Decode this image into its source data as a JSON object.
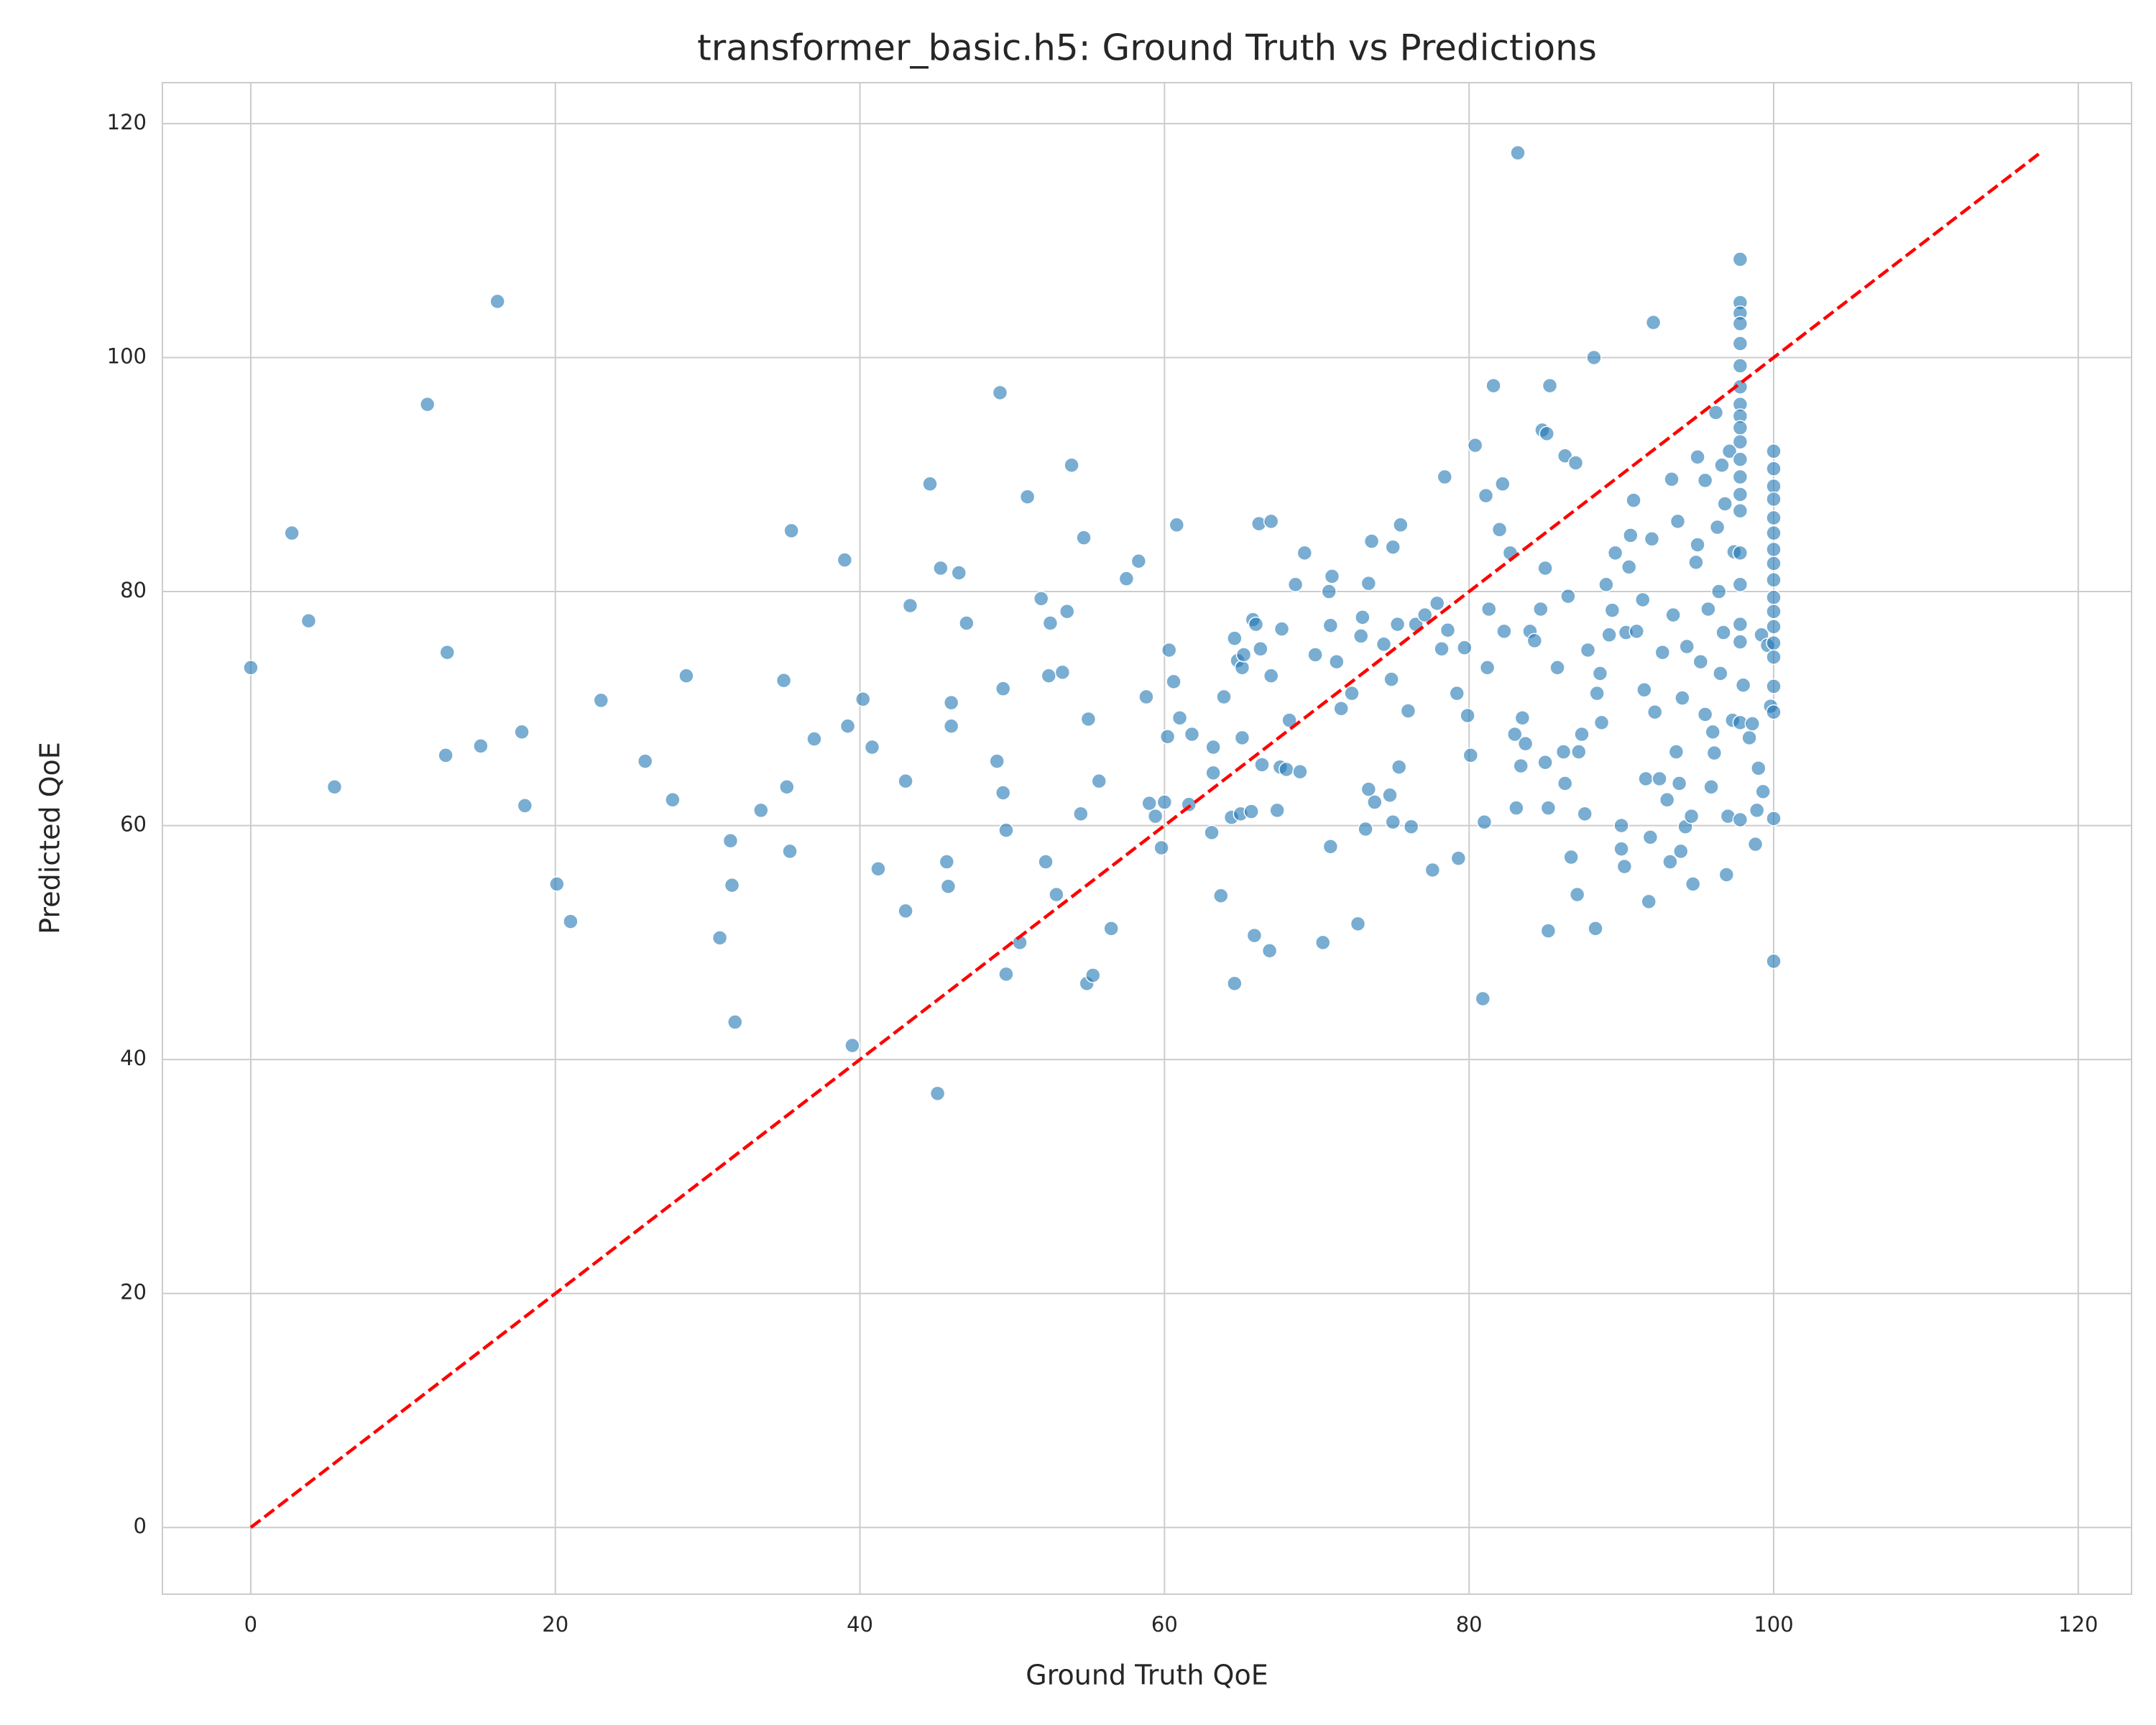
{
  "chart_data": {
    "type": "scatter",
    "title": "transformer_basic.h5: Ground Truth vs Predictions",
    "x_label": "Ground Truth QoE",
    "y_label": "Predicted QoE",
    "xlim": [
      -5.8,
      123.5
    ],
    "ylim": [
      -5.7,
      123.5
    ],
    "xticks": [
      0,
      20,
      40,
      60,
      80,
      100,
      120
    ],
    "yticks": [
      0,
      20,
      40,
      60,
      80,
      100,
      120
    ],
    "grid": true,
    "color": "#1f77b4",
    "reference_line": {
      "x": [
        0,
        117.5
      ],
      "y": [
        0,
        117.5
      ],
      "color": "#ff0000"
    },
    "x": [
      0,
      2.7,
      3.8,
      5.5,
      11.6,
      12.8,
      12.9,
      15.1,
      16.2,
      17.8,
      18,
      20.1,
      21,
      23,
      25.9,
      27.7,
      28.6,
      30.8,
      31.5,
      31.6,
      31.8,
      33.5,
      35,
      35.2,
      35.4,
      35.5,
      37,
      39,
      39.2,
      39.5,
      40.2,
      40.8,
      41.2,
      43,
      43,
      43.3,
      44.6,
      45.1,
      45.3,
      45.7,
      45.8,
      46,
      46,
      46.5,
      47,
      49,
      49.2,
      49.4,
      49.4,
      49.6,
      49.6,
      50.5,
      51,
      51.9,
      52.2,
      52.4,
      52.5,
      52.9,
      53.3,
      53.6,
      53.9,
      54.5,
      54.7,
      54.9,
      55,
      55.3,
      55.7,
      56.5,
      57.5,
      58.3,
      58.8,
      59,
      59.4,
      59.8,
      60,
      60.2,
      60.3,
      60.6,
      60.8,
      61,
      61.6,
      61.8,
      63.2,
      63.2,
      63.1,
      63.7,
      63.9,
      64.4,
      64.6,
      64.6,
      64.8,
      65,
      65.1,
      65.1,
      65.2,
      65.7,
      65.8,
      65.9,
      66,
      66.2,
      66.3,
      66.4,
      66.9,
      67,
      67,
      67.4,
      67.6,
      67.7,
      68,
      68.2,
      68.6,
      68.9,
      69.2,
      69.9,
      70.4,
      70.8,
      70.9,
      70.9,
      71,
      71.3,
      71.6,
      72.3,
      72.7,
      72.9,
      73,
      73.2,
      73.4,
      73.4,
      73.6,
      73.8,
      74.4,
      74.8,
      74.9,
      75,
      75,
      75.3,
      75.4,
      75.5,
      76,
      76.2,
      76.5,
      77.1,
      77.6,
      77.9,
      78.2,
      78.4,
      78.6,
      79.2,
      79.3,
      79.7,
      79.9,
      80.1,
      80.4,
      80.9,
      81,
      81.1,
      81.2,
      81.3,
      81.6,
      82,
      82.2,
      82.3,
      82.7,
      83,
      83.1,
      83.2,
      83.4,
      83.5,
      83.7,
      84,
      84.3,
      84.7,
      84.8,
      85,
      85,
      85.1,
      85.2,
      85.2,
      85.3,
      85.8,
      86.2,
      86.3,
      86.3,
      86.5,
      86.7,
      87,
      87.1,
      87.2,
      87.4,
      87.6,
      87.8,
      88.2,
      88.3,
      88.4,
      88.6,
      88.7,
      89,
      89.2,
      89.4,
      89.6,
      90,
      90,
      90.2,
      90.3,
      90.5,
      90.6,
      90.8,
      91,
      91.4,
      91.5,
      91.6,
      91.8,
      91.9,
      92,
      92.1,
      92.2,
      92.5,
      92.7,
      93,
      93.2,
      93.3,
      93.4,
      93.6,
      93.7,
      93.8,
      93.9,
      94,
      94.2,
      94.3,
      94.6,
      94.7,
      94.9,
      95,
      95,
      95.2,
      95.5,
      95.5,
      95.7,
      95.9,
      96,
      96.1,
      96.2,
      96.3,
      96.4,
      96.5,
      96.6,
      96.7,
      96.8,
      96.9,
      97,
      97.1,
      97.3,
      97.4,
      97.8,
      97.8,
      97.8,
      97.8,
      97.8,
      97.8,
      97.8,
      97.8,
      97.8,
      97.8,
      97.8,
      97.8,
      97.8,
      97.8,
      97.8,
      97.8,
      97.8,
      97.8,
      97.8,
      97.8,
      97.8,
      98,
      98.4,
      98.6,
      98.8,
      98.9,
      99,
      99.2,
      99.3,
      99.6,
      99.8,
      100,
      100,
      100,
      100,
      100,
      100,
      100,
      100,
      100,
      100,
      100,
      100,
      100,
      100,
      100,
      100,
      100,
      100
    ],
    "values": [
      73.5,
      85,
      77.5,
      63.3,
      96,
      66,
      74.8,
      66.8,
      104.8,
      68,
      61.7,
      55,
      51.8,
      70.7,
      65.5,
      62.2,
      72.8,
      50.4,
      58.7,
      54.9,
      43.2,
      61.3,
      72.4,
      63.3,
      57.8,
      85.2,
      67.4,
      82.7,
      68.5,
      41.2,
      70.8,
      66.7,
      56.3,
      63.8,
      52.7,
      78.8,
      89.2,
      37.1,
      82,
      56.9,
      54.8,
      70.5,
      68.5,
      81.6,
      77.3,
      65.5,
      97,
      62.8,
      71.7,
      59.6,
      47.3,
      50,
      88.1,
      79.4,
      56.9,
      72.8,
      77.3,
      54.1,
      73.1,
      78.3,
      90.8,
      61,
      84.6,
      46.5,
      69.1,
      47.2,
      63.8,
      51.2,
      81.1,
      82.6,
      71,
      61.9,
      60.8,
      58.1,
      62,
      67.6,
      75,
      72.3,
      85.7,
      69.2,
      61.8,
      67.8,
      66.7,
      64.5,
      59.4,
      54,
      71,
      60.7,
      76,
      46.5,
      74.1,
      61,
      67.5,
      73.5,
      74.6,
      61.2,
      77.6,
      50.6,
      77.2,
      85.8,
      75.1,
      65.2,
      49.3,
      86,
      72.8,
      61.3,
      65,
      76.8,
      64.8,
      69,
      80.6,
      64.6,
      83.3,
      74.6,
      50,
      80,
      77.1,
      58.2,
      81.3,
      74,
      70,
      71.3,
      51.6,
      76.2,
      77.8,
      59.7,
      63.1,
      80.7,
      84.3,
      62,
      75.5,
      62.6,
      72.5,
      60.3,
      83.8,
      77.2,
      65,
      85.7,
      69.8,
      59.9,
      77.2,
      78,
      56.2,
      79,
      75.1,
      89.8,
      76.7,
      71.3,
      57.2,
      75.2,
      69.4,
      66,
      92.5,
      45.2,
      60.3,
      88.2,
      73.5,
      78.5,
      97.6,
      85.3,
      89.2,
      76.6,
      83.3,
      67.8,
      61.5,
      117.5,
      65.1,
      69.2,
      67,
      76.6,
      75.8,
      78.5,
      93.8,
      65.4,
      82,
      93.5,
      51,
      61.5,
      97.6,
      73.5,
      66.3,
      63.6,
      91.6,
      79.6,
      57.3,
      91,
      54.1,
      66.3,
      67.8,
      61,
      75,
      100,
      51.2,
      71.3,
      73,
      68.8,
      80.6,
      76.3,
      78.4,
      83.3,
      60,
      58,
      56.5,
      76.5,
      82.1,
      84.8,
      87.8,
      76.6,
      79.3,
      71.6,
      64,
      53.5,
      59,
      84.5,
      103,
      69.7,
      64,
      74.8,
      62.2,
      56.9,
      89.6,
      78,
      66.3,
      86,
      63.6,
      57.8,
      70.9,
      59.9,
      75.3,
      60.8,
      55,
      82.5,
      91.5,
      84,
      74,
      89.5,
      69.5,
      78.5,
      63.3,
      68,
      66.2,
      95.3,
      85.5,
      80,
      73,
      90.8,
      76.5,
      87.5,
      55.8,
      60.8,
      92,
      69,
      83.4,
      108.4,
      104.7,
      103.8,
      102.9,
      101.2,
      99.3,
      97.5,
      96,
      95,
      94,
      92.8,
      91.3,
      89.8,
      88.3,
      86.9,
      83.3,
      80.6,
      77.2,
      75.7,
      68.8,
      60.5,
      72,
      67.5,
      68.7,
      58.4,
      61.3,
      64.9,
      76.3,
      62.9,
      75.4,
      70.2,
      92,
      90.5,
      89,
      87.9,
      86.3,
      85,
      83.6,
      82.4,
      81,
      79.5,
      78.3,
      77,
      75.6,
      74.4,
      71.9,
      69.7,
      60.6,
      48.4
    ]
  }
}
